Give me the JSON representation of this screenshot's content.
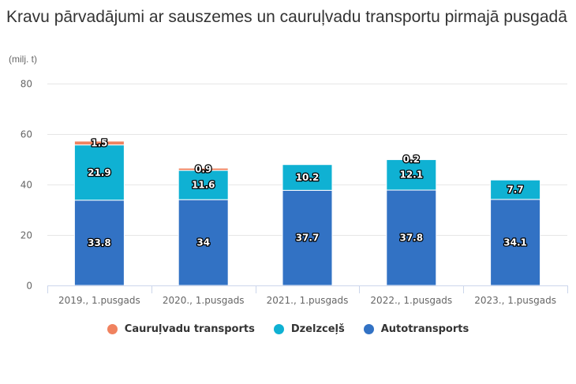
{
  "chart_data": {
    "type": "bar",
    "stacked": true,
    "title": "Kravu pārvadājumi ar sauszemes un cauruļvadu transportu pirmajā pusgadā",
    "subtitle": "(milj. t)",
    "xlabel": "",
    "ylabel": "milj. t",
    "ylim": [
      0,
      80
    ],
    "yticks": [
      0,
      20,
      40,
      60,
      80
    ],
    "grid": true,
    "legend_position": "bottom",
    "categories": [
      "2019., 1.pusgads",
      "2020., 1.pusgads",
      "2021., 1.pusgads",
      "2022., 1.pusgads",
      "2023., 1.pusgads"
    ],
    "series": [
      {
        "name": "Autotransports",
        "color": "#3272c4",
        "values": [
          33.8,
          34,
          37.7,
          37.8,
          34.1
        ]
      },
      {
        "name": "Dzelzceļš",
        "color": "#0fb1d3",
        "values": [
          21.9,
          11.6,
          10.2,
          12.1,
          7.7
        ]
      },
      {
        "name": "Cauruļvadu transports",
        "color": "#f0825f",
        "values": [
          1.5,
          0.9,
          null,
          0.2,
          null
        ]
      }
    ],
    "legend": [
      {
        "name": "Cauruļvadu transports",
        "color": "#f0825f"
      },
      {
        "name": "Dzelzceļš",
        "color": "#0fb1d3"
      },
      {
        "name": "Autotransports",
        "color": "#3272c4"
      }
    ]
  }
}
